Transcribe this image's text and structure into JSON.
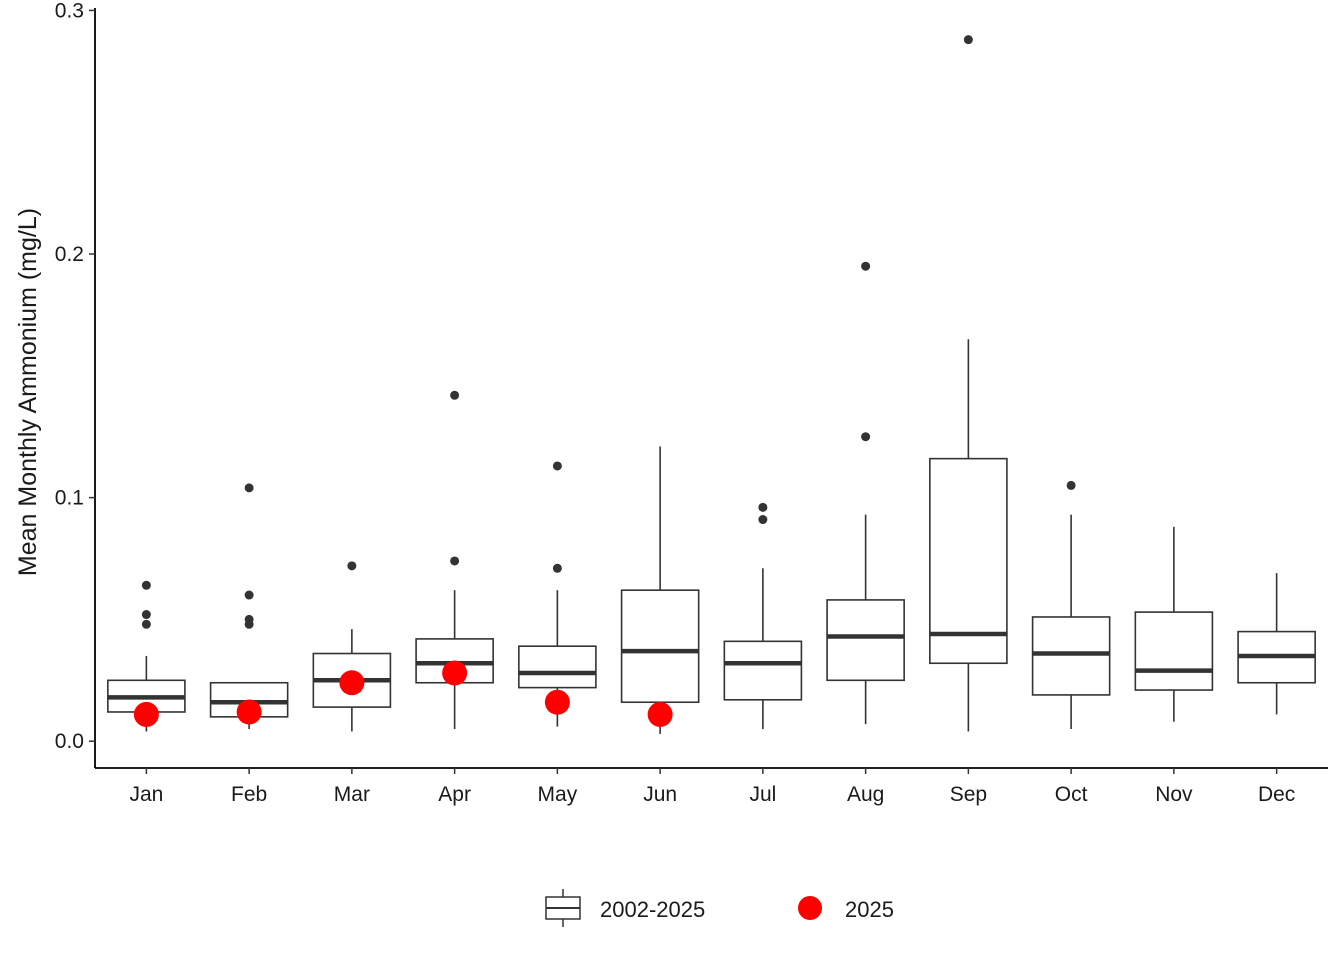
{
  "chart_data": {
    "type": "box",
    "title": "",
    "xlabel": "",
    "ylabel": "Mean Monthly Ammonium (mg/L)",
    "ylim": [
      -0.011,
      0.301
    ],
    "yticks": [
      0.0,
      0.1,
      0.2,
      0.3
    ],
    "ytick_labels": [
      "0.0",
      "0.1",
      "0.2",
      "0.3"
    ],
    "categories": [
      "Jan",
      "Feb",
      "Mar",
      "Apr",
      "May",
      "Jun",
      "Jul",
      "Aug",
      "Sep",
      "Oct",
      "Nov",
      "Dec"
    ],
    "grid": false,
    "legend_position": "bottom",
    "series": [
      {
        "name": "2002-2025",
        "kind": "boxplot",
        "box_color": "#333333",
        "boxes": [
          {
            "min": 0.004,
            "q1": 0.012,
            "median": 0.018,
            "q3": 0.025,
            "max": 0.035,
            "outliers": [
              0.048,
              0.052,
              0.064
            ]
          },
          {
            "min": 0.005,
            "q1": 0.01,
            "median": 0.016,
            "q3": 0.024,
            "max": 0.024,
            "outliers": [
              0.048,
              0.05,
              0.06,
              0.104
            ]
          },
          {
            "min": 0.004,
            "q1": 0.014,
            "median": 0.025,
            "q3": 0.036,
            "max": 0.046,
            "outliers": [
              0.072
            ]
          },
          {
            "min": 0.005,
            "q1": 0.024,
            "median": 0.032,
            "q3": 0.042,
            "max": 0.062,
            "outliers": [
              0.074,
              0.142
            ]
          },
          {
            "min": 0.006,
            "q1": 0.022,
            "median": 0.028,
            "q3": 0.039,
            "max": 0.062,
            "outliers": [
              0.071,
              0.113
            ]
          },
          {
            "min": 0.003,
            "q1": 0.016,
            "median": 0.037,
            "q3": 0.062,
            "max": 0.121,
            "outliers": []
          },
          {
            "min": 0.005,
            "q1": 0.017,
            "median": 0.032,
            "q3": 0.041,
            "max": 0.071,
            "outliers": [
              0.091,
              0.096
            ]
          },
          {
            "min": 0.007,
            "q1": 0.025,
            "median": 0.043,
            "q3": 0.058,
            "max": 0.093,
            "outliers": [
              0.125,
              0.195
            ]
          },
          {
            "min": 0.004,
            "q1": 0.032,
            "median": 0.044,
            "q3": 0.116,
            "max": 0.165,
            "outliers": [
              0.288
            ]
          },
          {
            "min": 0.005,
            "q1": 0.019,
            "median": 0.036,
            "q3": 0.051,
            "max": 0.093,
            "outliers": [
              0.105
            ]
          },
          {
            "min": 0.008,
            "q1": 0.021,
            "median": 0.029,
            "q3": 0.053,
            "max": 0.088,
            "outliers": []
          },
          {
            "min": 0.011,
            "q1": 0.024,
            "median": 0.035,
            "q3": 0.045,
            "max": 0.069,
            "outliers": []
          }
        ]
      },
      {
        "name": "2025",
        "kind": "point",
        "color": "#ff0000",
        "values": [
          0.011,
          0.012,
          0.024,
          0.028,
          0.016,
          0.011,
          null,
          null,
          null,
          null,
          null,
          null
        ]
      }
    ]
  }
}
